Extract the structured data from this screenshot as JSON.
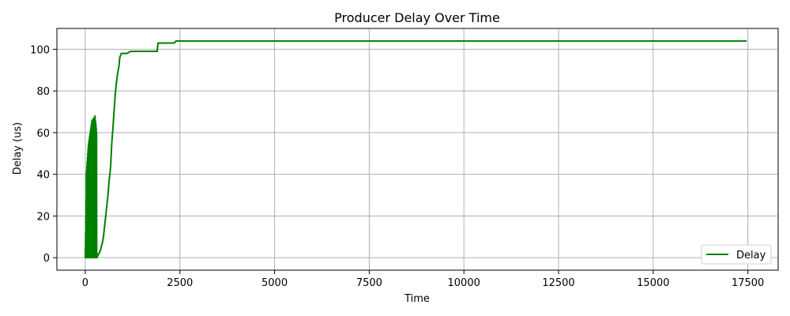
{
  "chart_data": {
    "type": "line",
    "title": "Producer Delay Over Time",
    "xlabel": "Time",
    "ylabel": "Delay (us)",
    "xlim": [
      -750,
      18300
    ],
    "ylim": [
      -6,
      110
    ],
    "xticks": [
      0,
      2500,
      5000,
      7500,
      10000,
      12500,
      15000,
      17500
    ],
    "yticks": [
      0,
      20,
      40,
      60,
      80,
      100
    ],
    "grid": true,
    "legend_position": "bottom-right",
    "series": [
      {
        "name": "Delay",
        "color": "#008000",
        "x": [
          0,
          3,
          6,
          9,
          12,
          15,
          18,
          21,
          24,
          27,
          30,
          34,
          38,
          42,
          46,
          50,
          54,
          58,
          62,
          66,
          70,
          74,
          78,
          82,
          86,
          90,
          94,
          98,
          102,
          106,
          110,
          114,
          118,
          122,
          126,
          130,
          134,
          138,
          142,
          146,
          150,
          154,
          158,
          162,
          166,
          170,
          174,
          178,
          182,
          186,
          190,
          194,
          198,
          202,
          206,
          210,
          214,
          218,
          222,
          226,
          230,
          234,
          238,
          242,
          246,
          250,
          254,
          258,
          262,
          266,
          270,
          274,
          278,
          282,
          286,
          290,
          294,
          298,
          302,
          306,
          310,
          330,
          360,
          390,
          420,
          450,
          480,
          510,
          540,
          570,
          600,
          630,
          650,
          670,
          700,
          730,
          760,
          790,
          810,
          830,
          850,
          870,
          890,
          910,
          930,
          950,
          980,
          1000,
          1020,
          1050,
          1100,
          1200,
          1250,
          1300,
          1500,
          1900,
          1920,
          2000,
          2300,
          2350,
          2400,
          5000,
          10000,
          15000,
          17450
        ],
        "values": [
          0,
          5,
          0,
          12,
          2,
          20,
          0,
          28,
          3,
          40,
          0,
          42,
          5,
          44,
          0,
          46,
          10,
          48,
          0,
          50,
          2,
          52,
          0,
          54,
          8,
          55,
          0,
          56,
          4,
          57,
          0,
          58,
          6,
          59,
          0,
          60,
          2,
          61,
          0,
          62,
          5,
          63,
          0,
          64,
          3,
          65,
          0,
          66,
          1,
          64,
          0,
          66,
          7,
          65,
          0,
          66,
          3,
          67,
          0,
          66,
          2,
          65,
          0,
          66,
          4,
          67,
          0,
          68,
          2,
          66,
          0,
          65,
          3,
          64,
          0,
          62,
          1,
          60,
          0,
          2,
          0,
          1,
          2,
          3,
          5,
          7,
          10,
          15,
          20,
          25,
          30,
          37,
          40,
          44,
          55,
          62,
          70,
          78,
          82,
          85,
          88,
          90,
          92,
          96,
          97,
          98,
          98,
          98,
          98,
          98,
          98,
          99,
          99,
          99,
          99,
          99,
          103,
          103,
          103,
          103,
          104,
          104,
          104,
          104,
          104
        ]
      }
    ]
  }
}
